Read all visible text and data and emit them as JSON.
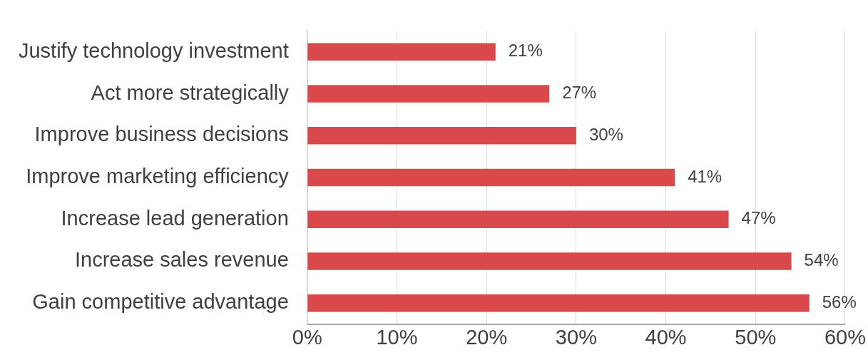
{
  "chart_data": {
    "type": "bar",
    "orientation": "horizontal",
    "categories": [
      "Justify technology investment",
      "Act more strategically",
      "Improve business decisions",
      "Improve marketing efficiency",
      "Increase lead generation",
      "Increase sales revenue",
      "Gain competitive advantage"
    ],
    "values": [
      21,
      27,
      30,
      41,
      47,
      54,
      56
    ],
    "value_labels": [
      "21%",
      "27%",
      "30%",
      "41%",
      "47%",
      "54%",
      "56%"
    ],
    "color": "#d9494b",
    "xlim": [
      0,
      60
    ],
    "xticks": [
      {
        "value": 0,
        "label": "0%"
      },
      {
        "value": 10,
        "label": "10%"
      },
      {
        "value": 20,
        "label": "20%"
      },
      {
        "value": 30,
        "label": "30%"
      },
      {
        "value": 40,
        "label": "40%"
      },
      {
        "value": 50,
        "label": "50%"
      },
      {
        "value": 60,
        "label": "60%"
      }
    ],
    "grid": "x",
    "legend": false
  }
}
